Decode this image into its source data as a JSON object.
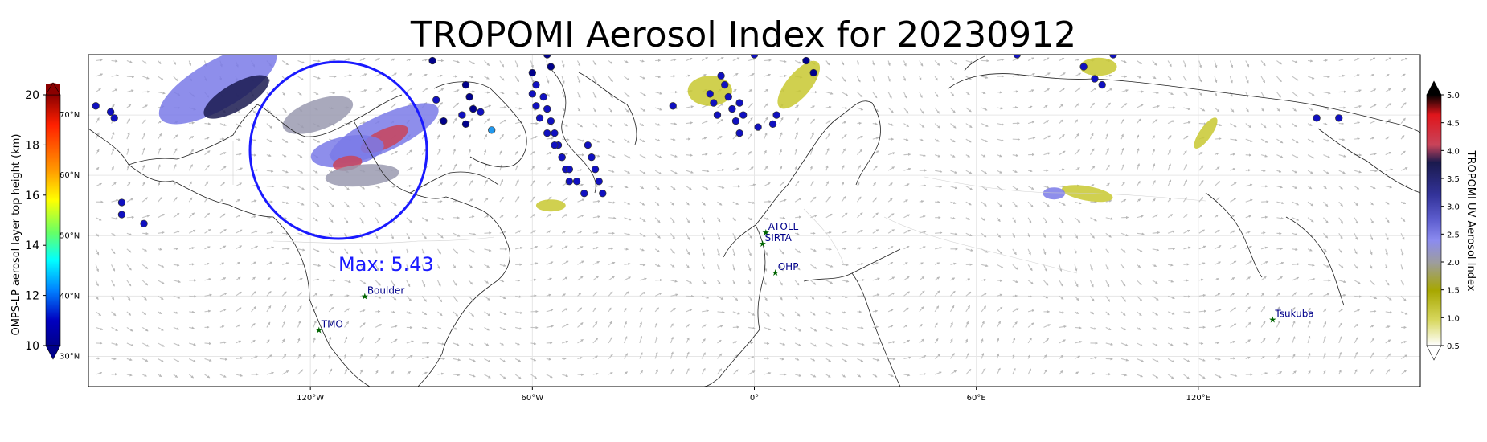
{
  "title": "TROPOMI Aerosol Index for 20230912",
  "max_annotation": "Max: 5.43",
  "map": {
    "lon_range": [
      -180,
      180
    ],
    "lat_range": [
      25,
      80
    ],
    "x_ticks": [
      {
        "lon": -120,
        "label": "120°W"
      },
      {
        "lon": -60,
        "label": "60°W"
      },
      {
        "lon": 0,
        "label": "0°"
      },
      {
        "lon": 60,
        "label": "60°E"
      },
      {
        "lon": 120,
        "label": "120°E"
      }
    ],
    "lat_ticks": [
      {
        "lat": 70,
        "label": "70°N"
      },
      {
        "lat": 60,
        "label": "60°N"
      },
      {
        "lat": 50,
        "label": "50°N"
      },
      {
        "lat": 40,
        "label": "40°N"
      },
      {
        "lat": 30,
        "label": "30°N"
      }
    ]
  },
  "left_colorbar": {
    "label": "OMPS-LP aerosol layer top height (km)",
    "ticks": [
      "20",
      "18",
      "16",
      "14",
      "12",
      "10"
    ],
    "colors": [
      "#8b0000",
      "#ff2000",
      "#ff9900",
      "#ffff00",
      "#66ff66",
      "#00ffff",
      "#0080ff",
      "#0000c0",
      "#00008b"
    ]
  },
  "right_colorbar": {
    "label": "TROPOMI UV Aerosol Index",
    "ticks": [
      "5.0",
      "4.5",
      "4.0",
      "3.5",
      "3.0",
      "2.5",
      "2.0",
      "1.5",
      "1.0",
      "0.5"
    ],
    "colors": [
      "#000000",
      "#e0151b",
      "#c9445a",
      "#1a1a4e",
      "#33339a",
      "#5e5ecf",
      "#8b8bef",
      "#9d9d9d",
      "#a7a700",
      "#d8d860",
      "#ffffff"
    ]
  },
  "stations": [
    {
      "name": "ATOLL",
      "lon": 3.1,
      "lat": 50.6
    },
    {
      "name": "SIRTA",
      "lon": 2.2,
      "lat": 48.7
    },
    {
      "name": "OHP",
      "lon": 5.7,
      "lat": 43.9
    },
    {
      "name": "Boulder",
      "lon": -105.3,
      "lat": 40.0
    },
    {
      "name": "TMO",
      "lon": -117.7,
      "lat": 34.4
    },
    {
      "name": "Tsukuba",
      "lon": 140.1,
      "lat": 36.1
    }
  ],
  "station_color": "#006400",
  "station_label_color": "#00008b",
  "highlight_circle_color": "#1a1aff",
  "omps_points": [
    {
      "lon": -178,
      "lat": 71.5,
      "h": 11
    },
    {
      "lon": -174,
      "lat": 70.5,
      "h": 11
    },
    {
      "lon": -173,
      "lat": 69.5,
      "h": 11
    },
    {
      "lon": -171,
      "lat": 55.5,
      "h": 11
    },
    {
      "lon": -171,
      "lat": 53.5,
      "h": 11
    },
    {
      "lon": -165,
      "lat": 52,
      "h": 11
    },
    {
      "lon": -87,
      "lat": 79,
      "h": 10.5
    },
    {
      "lon": -86,
      "lat": 72.5,
      "h": 11
    },
    {
      "lon": -84,
      "lat": 69,
      "h": 10.5
    },
    {
      "lon": -78,
      "lat": 75,
      "h": 10.5
    },
    {
      "lon": -77,
      "lat": 73,
      "h": 10.5
    },
    {
      "lon": -76,
      "lat": 71,
      "h": 10.5
    },
    {
      "lon": -79,
      "lat": 70,
      "h": 11
    },
    {
      "lon": -78,
      "lat": 68.5,
      "h": 10.5
    },
    {
      "lon": -74,
      "lat": 70.5,
      "h": 11
    },
    {
      "lon": -71,
      "lat": 67.5,
      "h": 14
    },
    {
      "lon": -60,
      "lat": 77,
      "h": 10.5
    },
    {
      "lon": -59,
      "lat": 75,
      "h": 11
    },
    {
      "lon": -57,
      "lat": 73,
      "h": 11
    },
    {
      "lon": -56,
      "lat": 71,
      "h": 11
    },
    {
      "lon": -55,
      "lat": 69,
      "h": 11
    },
    {
      "lon": -54,
      "lat": 67,
      "h": 11
    },
    {
      "lon": -53,
      "lat": 65,
      "h": 11
    },
    {
      "lon": -52,
      "lat": 63,
      "h": 11
    },
    {
      "lon": -51,
      "lat": 61,
      "h": 11
    },
    {
      "lon": -50,
      "lat": 59,
      "h": 11
    },
    {
      "lon": -60,
      "lat": 73.5,
      "h": 11
    },
    {
      "lon": -59,
      "lat": 71.5,
      "h": 11
    },
    {
      "lon": -58,
      "lat": 69.5,
      "h": 11
    },
    {
      "lon": -56,
      "lat": 67,
      "h": 11
    },
    {
      "lon": -54,
      "lat": 65,
      "h": 11
    },
    {
      "lon": -52,
      "lat": 63,
      "h": 11
    },
    {
      "lon": -50,
      "lat": 61,
      "h": 11
    },
    {
      "lon": -48,
      "lat": 59,
      "h": 11
    },
    {
      "lon": -46,
      "lat": 57,
      "h": 11
    },
    {
      "lon": -45,
      "lat": 65,
      "h": 11
    },
    {
      "lon": -44,
      "lat": 63,
      "h": 11
    },
    {
      "lon": -43,
      "lat": 61,
      "h": 11
    },
    {
      "lon": -42,
      "lat": 59,
      "h": 11
    },
    {
      "lon": -41,
      "lat": 57,
      "h": 11
    },
    {
      "lon": -56,
      "lat": 80,
      "h": 10.5
    },
    {
      "lon": -55,
      "lat": 78,
      "h": 10.5
    },
    {
      "lon": -9,
      "lat": 76.5,
      "h": 11
    },
    {
      "lon": -8,
      "lat": 75,
      "h": 11
    },
    {
      "lon": -7,
      "lat": 73,
      "h": 11
    },
    {
      "lon": -6,
      "lat": 71,
      "h": 11
    },
    {
      "lon": -5,
      "lat": 69,
      "h": 11
    },
    {
      "lon": -4,
      "lat": 67,
      "h": 11
    },
    {
      "lon": -12,
      "lat": 73.5,
      "h": 11
    },
    {
      "lon": -11,
      "lat": 72,
      "h": 11
    },
    {
      "lon": -10,
      "lat": 70,
      "h": 11
    },
    {
      "lon": -4,
      "lat": 72,
      "h": 11
    },
    {
      "lon": -3,
      "lat": 70,
      "h": 11
    },
    {
      "lon": -22,
      "lat": 71.5,
      "h": 11
    },
    {
      "lon": 0,
      "lat": 80,
      "h": 11
    },
    {
      "lon": 1,
      "lat": 68,
      "h": 11
    },
    {
      "lon": 5,
      "lat": 68.5,
      "h": 11
    },
    {
      "lon": 6,
      "lat": 70,
      "h": 11
    },
    {
      "lon": 9,
      "lat": 81,
      "h": 10.5
    },
    {
      "lon": 14,
      "lat": 79,
      "h": 10.5
    },
    {
      "lon": 16,
      "lat": 77,
      "h": 10.5
    },
    {
      "lon": 71,
      "lat": 80,
      "h": 11
    },
    {
      "lon": 89,
      "lat": 78,
      "h": 11
    },
    {
      "lon": 92,
      "lat": 76,
      "h": 11
    },
    {
      "lon": 94,
      "lat": 75,
      "h": 11
    },
    {
      "lon": 97,
      "lat": 80,
      "h": 11
    },
    {
      "lon": 152,
      "lat": 69.5,
      "h": 11
    },
    {
      "lon": 158,
      "lat": 69.5,
      "h": 11
    }
  ],
  "smoke_plumes": [
    {
      "lon": -145,
      "lat": 75,
      "rx": 18,
      "ry": 4,
      "rot": -30,
      "ai": 3.0
    },
    {
      "lon": -140,
      "lat": 73,
      "rx": 10,
      "ry": 2.2,
      "rot": -30,
      "ai": 4.2
    },
    {
      "lon": -100,
      "lat": 67,
      "rx": 16,
      "ry": 3,
      "rot": -25,
      "ai": 3.0
    },
    {
      "lon": -100,
      "lat": 66,
      "rx": 7,
      "ry": 1.6,
      "rot": -25,
      "ai": 4.6
    },
    {
      "lon": -110,
      "lat": 64,
      "rx": 10,
      "ry": 2.5,
      "rot": -10,
      "ai": 3.2
    },
    {
      "lon": -110,
      "lat": 62,
      "rx": 4,
      "ry": 1.2,
      "rot": -10,
      "ai": 4.8
    },
    {
      "lon": -118,
      "lat": 70,
      "rx": 10,
      "ry": 2.5,
      "rot": -20,
      "ai": 2.6
    },
    {
      "lon": -106,
      "lat": 60,
      "rx": 10,
      "ry": 1.8,
      "rot": -5,
      "ai": 2.6
    },
    {
      "lon": -55,
      "lat": 55,
      "rx": 4,
      "ry": 1,
      "rot": 0,
      "ai": 1.8
    },
    {
      "lon": -12,
      "lat": 74,
      "rx": 6,
      "ry": 2.5,
      "rot": 0,
      "ai": 1.6
    },
    {
      "lon": 12,
      "lat": 75,
      "rx": 8,
      "ry": 2,
      "rot": -50,
      "ai": 1.8
    },
    {
      "lon": 93,
      "lat": 78,
      "rx": 5,
      "ry": 1.5,
      "rot": 0,
      "ai": 1.7
    },
    {
      "lon": 122,
      "lat": 67,
      "rx": 5,
      "ry": 1,
      "rot": -55,
      "ai": 1.9
    },
    {
      "lon": 90,
      "lat": 57,
      "rx": 7,
      "ry": 1.2,
      "rot": 10,
      "ai": 1.9
    },
    {
      "lon": 81,
      "lat": 57,
      "rx": 3,
      "ry": 1,
      "rot": 0,
      "ai": 3.0
    }
  ]
}
